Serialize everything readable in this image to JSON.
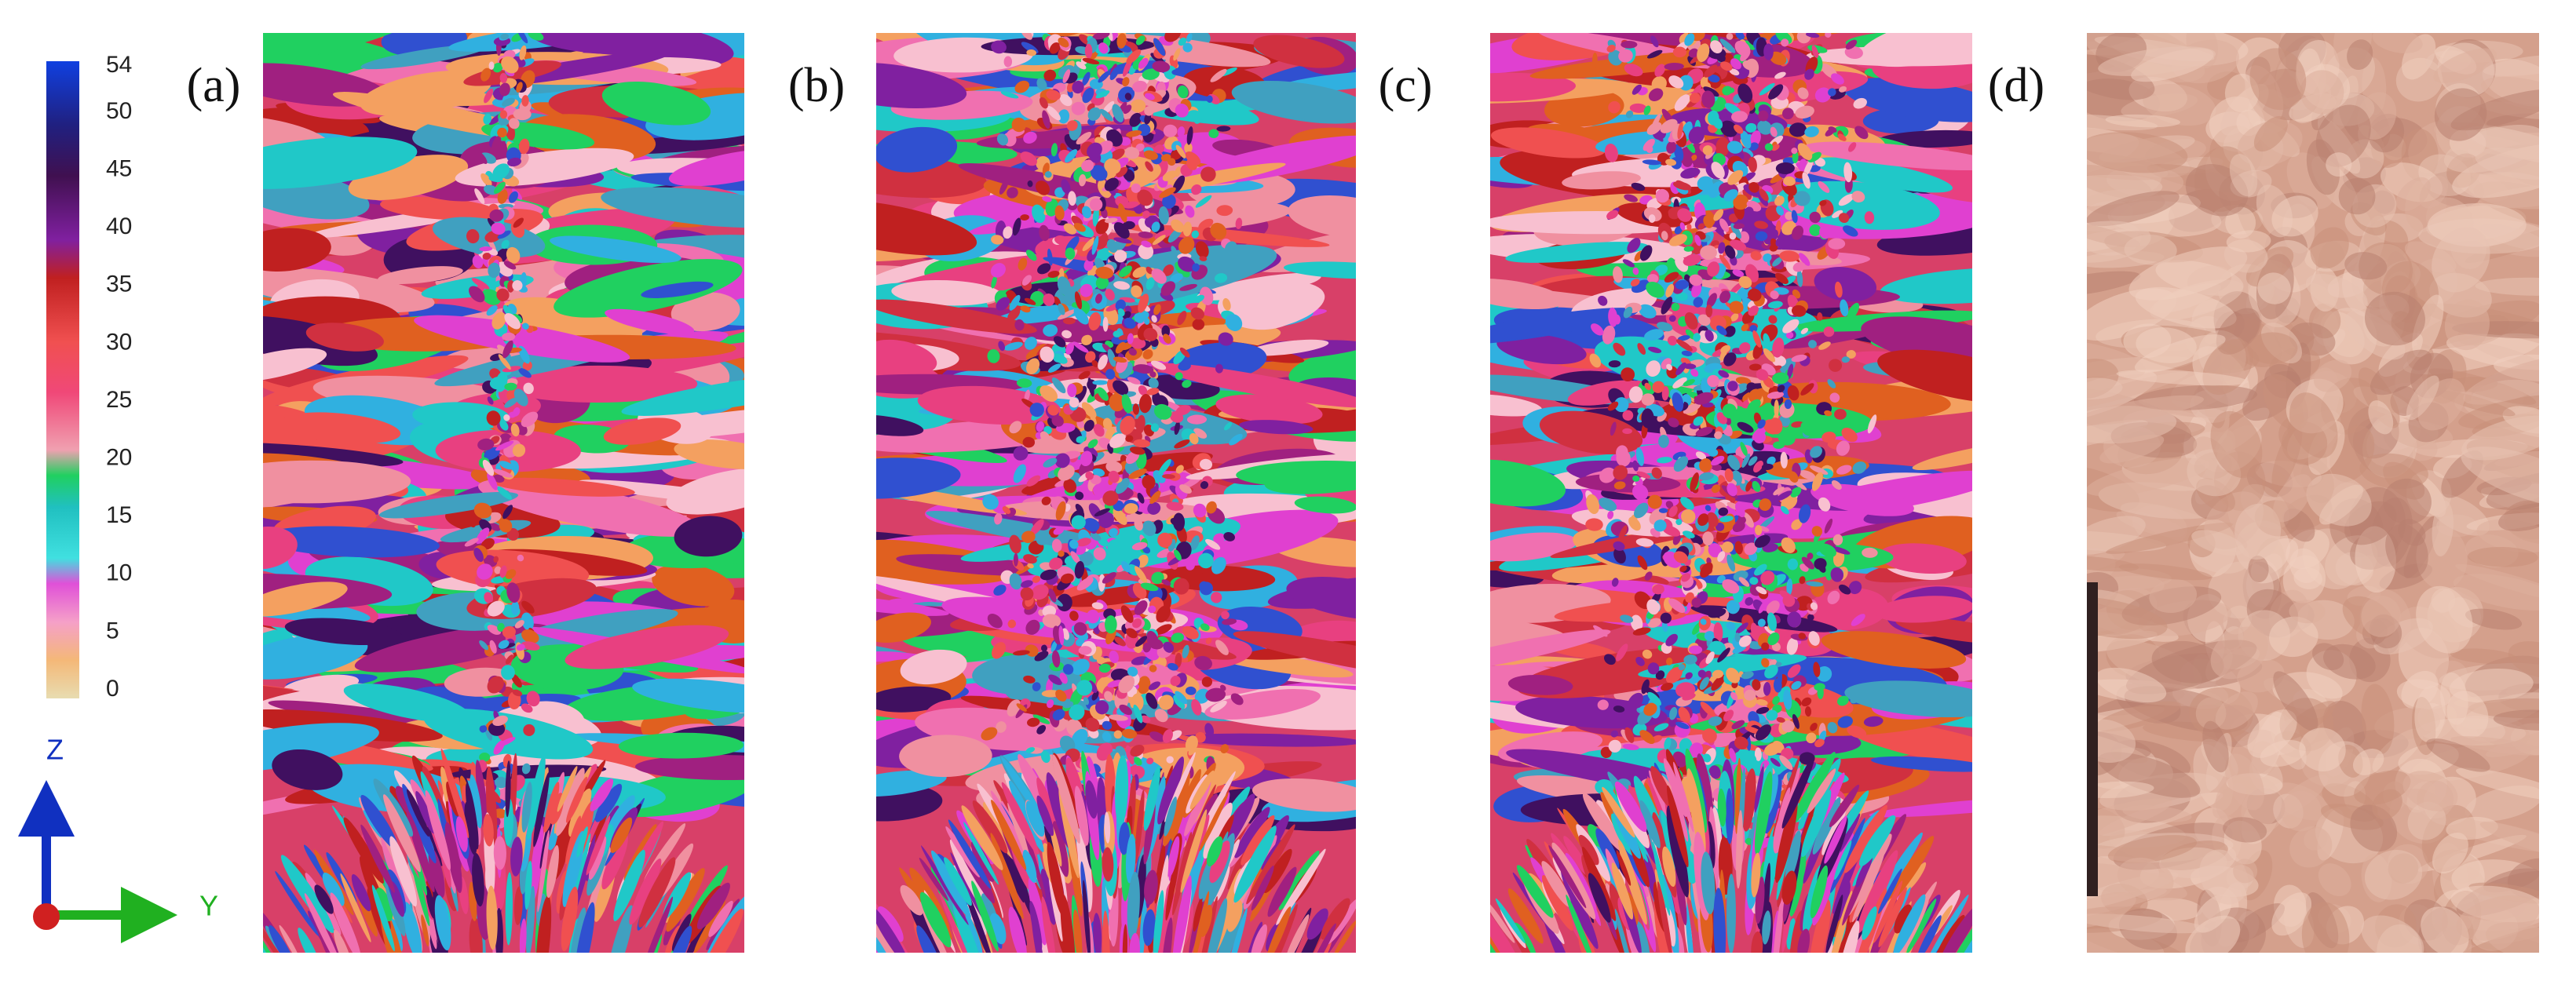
{
  "colorbar": {
    "ticks": [
      0,
      5,
      10,
      15,
      20,
      25,
      30,
      35,
      40,
      45,
      50,
      54
    ]
  },
  "axes": {
    "vertical": "Z",
    "horizontal": "Y"
  },
  "panels": [
    {
      "label": "(a)"
    },
    {
      "label": "(b)"
    },
    {
      "label": "(c)"
    },
    {
      "label": "(d)"
    }
  ]
}
